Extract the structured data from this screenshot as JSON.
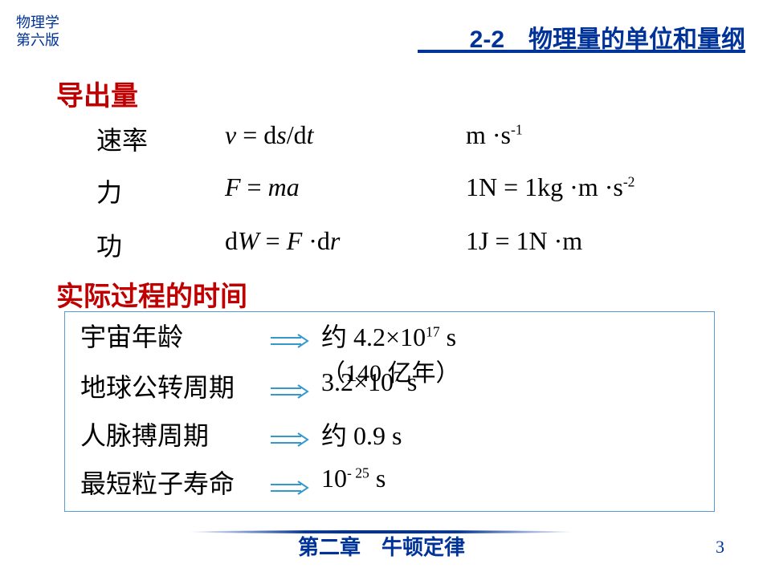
{
  "header": {
    "left_line1": "物理学",
    "left_line2": "第六版",
    "right": "2-2　物理量的单位和量纲"
  },
  "section1_title": "导出量",
  "rows": [
    {
      "label": "速率",
      "formula_html": "<span class='italic'>v</span> = d<span class='italic'>s</span>/d<span class='italic'>t</span>",
      "unit_html": "m ·s<sup>-1</sup>"
    },
    {
      "label": "力",
      "formula_html": "<span class='italic'>F</span> = <span class='italic'>ma</span>",
      "unit_html": "1N = 1kg ·m ·s<sup>-2</sup>"
    },
    {
      "label": "功",
      "formula_html": "d<span class='italic'>W</span> = <span class='italic'>F</span> ·d<span class='italic'>r</span>",
      "unit_html": "1J = 1N ·m"
    }
  ],
  "section2_title": "实际过程的时间",
  "timescales": [
    {
      "label": "宇宙年龄",
      "value_html": "<span class='cn'>约</span> 4.2×10<sup>17</sup> s"
    },
    {
      "label": "地球公转周期",
      "value_html": "3.2×10<sup>7</sup> s"
    },
    {
      "label": "人脉搏周期",
      "value_html": "<span class='cn'>约</span> 0.9 s"
    },
    {
      "label": "最短粒子寿命",
      "value_html": "10<sup>- 25</sup> s"
    }
  ],
  "overlay_note": "（140 亿年）",
  "footer": "第二章　牛顿定律",
  "page": "3",
  "colors": {
    "brand": "#003399",
    "heading": "#c00000",
    "box_border": "#5b9bd5",
    "arrow": "#3399cc"
  }
}
